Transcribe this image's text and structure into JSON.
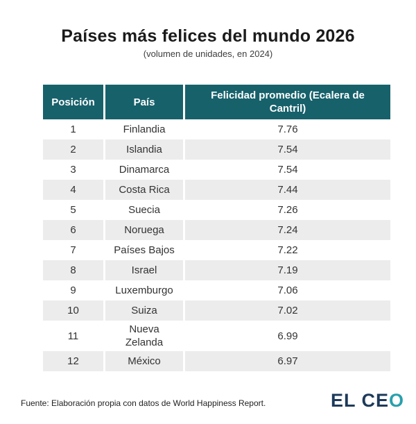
{
  "chart_data": {
    "type": "table",
    "title": "Países más felices del mundo 2026",
    "subtitle": "(volumen de unidades, en 2024)",
    "columns": [
      "Posición",
      "País",
      "Felicidad promedio (Ecalera de Cantril)"
    ],
    "rows": [
      {
        "pos": "1",
        "country": "Finlandia",
        "value": "7.76"
      },
      {
        "pos": "2",
        "country": "Islandia",
        "value": "7.54"
      },
      {
        "pos": "3",
        "country": "Dinamarca",
        "value": "7.54"
      },
      {
        "pos": "4",
        "country": "Costa Rica",
        "value": "7.44"
      },
      {
        "pos": "5",
        "country": "Suecia",
        "value": "7.26"
      },
      {
        "pos": "6",
        "country": "Noruega",
        "value": "7.24"
      },
      {
        "pos": "7",
        "country": "Países Bajos",
        "value": "7.22"
      },
      {
        "pos": "8",
        "country": "Israel",
        "value": "7.19"
      },
      {
        "pos": "9",
        "country": "Luxemburgo",
        "value": "7.06"
      },
      {
        "pos": "10",
        "country": "Suiza",
        "value": "7.02"
      },
      {
        "pos": "11",
        "country": "Nueva Zelanda",
        "value": "6.99"
      },
      {
        "pos": "12",
        "country": "México",
        "value": "6.97"
      }
    ]
  },
  "footer": {
    "source": "Fuente: Elaboración propia con datos de World Happiness Report.",
    "logo_part1": "EL CE",
    "logo_part2": "O"
  },
  "colors": {
    "header_bg": "#17616b",
    "row_alt": "#ececec",
    "logo_navy": "#1d3a5a",
    "logo_teal": "#28a0ad"
  }
}
